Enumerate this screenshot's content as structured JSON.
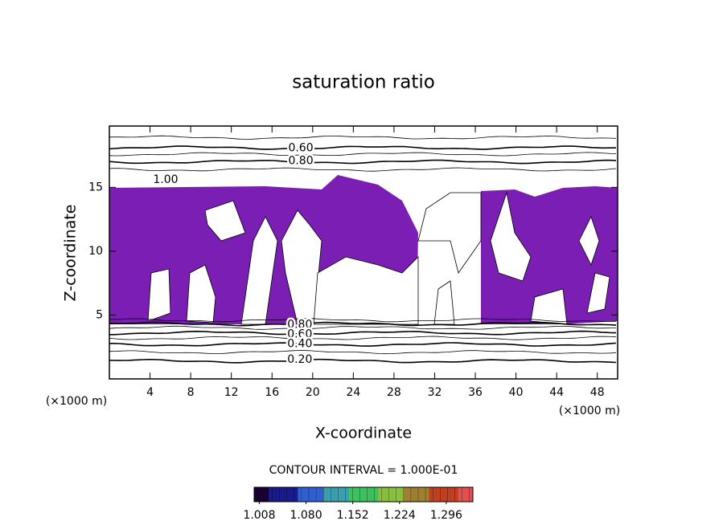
{
  "chart_data": {
    "type": "contour",
    "title": "saturation ratio",
    "x_label": "X-coordinate",
    "y_label": "Z-coordinate",
    "x_unit": "(×1000 m)",
    "y_unit": "(×1000 m)",
    "xlim": [
      0,
      50
    ],
    "ylim": [
      0,
      19.8
    ],
    "xticks": [
      4,
      8,
      12,
      16,
      20,
      24,
      28,
      32,
      36,
      40,
      44,
      48
    ],
    "yticks": [
      5,
      10,
      15
    ],
    "fill_color": "#7b1fb4",
    "contours": [
      {
        "level": 0.2,
        "z": 1.4
      },
      {
        "level": 0.3,
        "z": 2.1
      },
      {
        "level": 0.4,
        "z": 2.7
      },
      {
        "level": 0.5,
        "z": 3.2
      },
      {
        "level": 0.6,
        "z": 3.6
      },
      {
        "level": 0.7,
        "z": 4.0
      },
      {
        "level": 0.8,
        "z": 4.3
      },
      {
        "level": 0.9,
        "z": 4.6
      },
      {
        "level": 0.9,
        "z": 16.4
      },
      {
        "level": 0.8,
        "z": 17.0
      },
      {
        "level": 0.7,
        "z": 17.6
      },
      {
        "level": 0.6,
        "z": 18.1
      },
      {
        "level": 0.5,
        "z": 18.9
      }
    ],
    "contour_labels": [
      {
        "value": 0.6,
        "label": "0.60",
        "x": 17.6,
        "z": 18.06
      },
      {
        "value": 0.8,
        "label": "0.80",
        "x": 17.6,
        "z": 17.06
      },
      {
        "value": 1,
        "label": "1.00",
        "x": 4.3,
        "z": 15.6
      },
      {
        "value": 0.8,
        "label": "0.80",
        "x": 17.5,
        "z": 4.25
      },
      {
        "value": 0.6,
        "label": "0.60",
        "x": 17.5,
        "z": 3.5
      },
      {
        "value": 0.4,
        "label": "0.40",
        "x": 17.5,
        "z": 2.75
      },
      {
        "value": 0.2,
        "label": "0.20",
        "x": 17.5,
        "z": 1.5
      }
    ],
    "contour_interval_text": "CONTOUR INTERVAL = 1.000E-01",
    "colorbar": {
      "lim": [
        1.0,
        1.337
      ],
      "ticks": [
        1.008,
        {
          "value": 1.08,
          "label": "1.080"
        },
        1.152,
        1.224,
        1.296
      ],
      "colors": [
        "#1a0033",
        "#1a1a8a",
        "#2f5fd0",
        "#3aa0b0",
        "#3cc060",
        "#8ac040",
        "#a08030",
        "#c04020",
        "#e05050"
      ]
    }
  }
}
